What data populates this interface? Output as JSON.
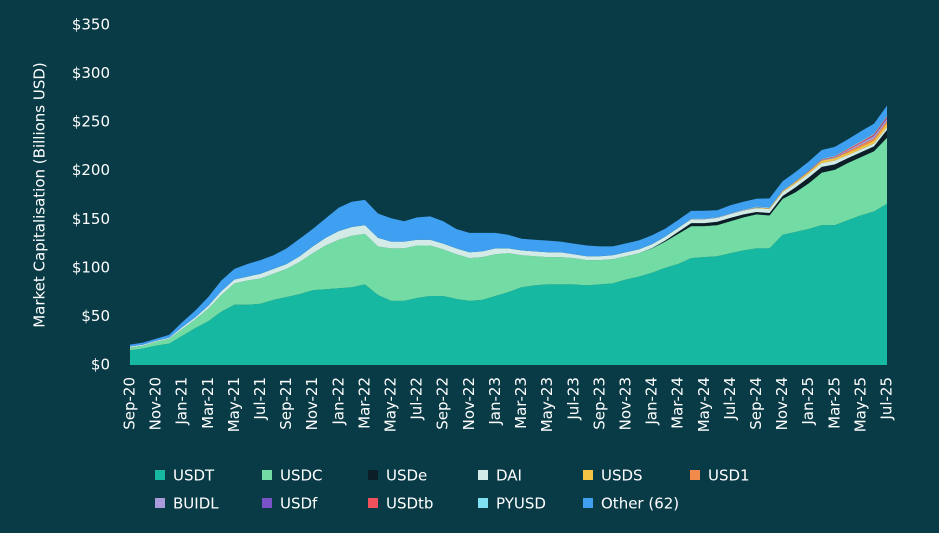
{
  "chart_data": {
    "type": "stacked-area",
    "y_axis_label": "Market Capitalisation (Billions USD)",
    "categories": [
      "Sep-20",
      null,
      "Nov-20",
      null,
      "Jan-21",
      null,
      "Mar-21",
      null,
      "May-21",
      null,
      "Jul-21",
      null,
      "Sep-21",
      null,
      "Nov-21",
      null,
      "Jan-22",
      null,
      "Mar-22",
      null,
      "May-22",
      null,
      "Jul-22",
      null,
      "Sep-22",
      null,
      "Nov-22",
      null,
      "Jan-23",
      null,
      "Mar-23",
      null,
      "May-23",
      null,
      "Jul-23",
      null,
      "Sep-23",
      null,
      "Nov-23",
      null,
      "Jan-24",
      null,
      "Mar-24",
      null,
      "May-24",
      null,
      "Jul-24",
      null,
      "Sep-24",
      null,
      "Nov-24",
      null,
      "Jan-25",
      null,
      "Mar-25",
      null,
      "May-25",
      null,
      "Jul-25"
    ],
    "ylim": [
      0,
      350
    ],
    "yticks": [
      {
        "value": 0,
        "label": "$0"
      },
      {
        "value": 50,
        "label": "$50"
      },
      {
        "value": 100,
        "label": "$100"
      },
      {
        "value": 150,
        "label": "$150"
      },
      {
        "value": 200,
        "label": "$200"
      },
      {
        "value": 250,
        "label": "$250"
      },
      {
        "value": 300,
        "label": "$300"
      },
      {
        "value": 350,
        "label": "$350"
      }
    ],
    "grid": false,
    "series": [
      {
        "name": "USDT",
        "color": "#16b8a2",
        "values": [
          15,
          17,
          20,
          22,
          30,
          38,
          45,
          55,
          62,
          62,
          63,
          67,
          70,
          73,
          77,
          78,
          79,
          80,
          83,
          72,
          66,
          66,
          69,
          71,
          71,
          68,
          66,
          67,
          71,
          75,
          80,
          82,
          83,
          83,
          83,
          82,
          83,
          84,
          88,
          91,
          95,
          100,
          104,
          110,
          111,
          112,
          115,
          118,
          120,
          120,
          134,
          137,
          140,
          144,
          144,
          149,
          154,
          158,
          166
        ]
      },
      {
        "name": "USDC",
        "color": "#72dca4",
        "values": [
          3,
          3,
          4,
          5,
          7,
          9,
          13,
          17,
          22,
          25,
          26,
          27,
          29,
          33,
          38,
          45,
          50,
          53,
          52,
          50,
          54,
          54,
          54,
          52,
          48,
          46,
          44,
          44,
          43,
          40,
          33,
          30,
          28,
          28,
          27,
          26,
          25,
          25,
          24,
          24,
          25,
          27,
          31,
          33,
          32,
          32,
          33,
          34,
          35,
          34,
          37,
          41,
          47,
          54,
          57,
          59,
          60,
          62,
          68
        ]
      },
      {
        "name": "USDe",
        "color": "#0c1f28",
        "values": [
          0,
          0,
          0,
          0,
          0,
          0,
          0,
          0,
          0,
          0,
          0,
          0,
          0,
          0,
          0,
          0,
          0,
          0,
          0,
          0,
          0,
          0,
          0,
          0,
          0,
          0,
          0,
          0,
          0,
          0,
          0,
          0,
          0,
          0,
          0,
          0,
          0,
          0,
          0,
          0,
          0.3,
          1,
          2,
          3,
          3,
          3.5,
          3.5,
          3,
          2.5,
          2.5,
          3,
          5,
          6,
          6,
          5.5,
          5,
          5,
          5,
          8
        ]
      },
      {
        "name": "DAI",
        "color": "#d3ebe6",
        "values": [
          1,
          1,
          1,
          1,
          2,
          2,
          3,
          4,
          4,
          4,
          5,
          5,
          5,
          6,
          7,
          8,
          9,
          9,
          9,
          9,
          7,
          7,
          6,
          6,
          6,
          6,
          6,
          6,
          6,
          5,
          5,
          5,
          5,
          5,
          4,
          4,
          4,
          4,
          4,
          4,
          4,
          4,
          4,
          4,
          4,
          4,
          4,
          4,
          4,
          4,
          4,
          4,
          4,
          4,
          4,
          3,
          3,
          3,
          3
        ]
      },
      {
        "name": "USDS",
        "color": "#f5c343",
        "values": [
          0,
          0,
          0,
          0,
          0,
          0,
          0,
          0,
          0,
          0,
          0,
          0,
          0,
          0,
          0,
          0,
          0,
          0,
          0,
          0,
          0,
          0,
          0,
          0,
          0,
          0,
          0,
          0,
          0,
          0,
          0,
          0,
          0,
          0,
          0,
          0,
          0,
          0,
          0,
          0,
          0,
          0,
          0,
          0,
          0,
          0,
          0,
          0,
          0.5,
          0.8,
          1,
          1.5,
          2,
          2.5,
          2.5,
          2.5,
          2.5,
          3,
          4
        ]
      },
      {
        "name": "USD1",
        "color": "#f28a4c",
        "values": [
          0,
          0,
          0,
          0,
          0,
          0,
          0,
          0,
          0,
          0,
          0,
          0,
          0,
          0,
          0,
          0,
          0,
          0,
          0,
          0,
          0,
          0,
          0,
          0,
          0,
          0,
          0,
          0,
          0,
          0,
          0,
          0,
          0,
          0,
          0,
          0,
          0,
          0,
          0,
          0,
          0,
          0,
          0,
          0,
          0,
          0,
          0,
          0,
          0,
          0,
          0,
          0,
          0,
          0,
          0,
          1.5,
          2,
          2.2,
          2.2
        ]
      },
      {
        "name": "BUIDL",
        "color": "#a99bdb",
        "values": [
          0,
          0,
          0,
          0,
          0,
          0,
          0,
          0,
          0,
          0,
          0,
          0,
          0,
          0,
          0,
          0,
          0,
          0,
          0,
          0,
          0,
          0,
          0,
          0,
          0,
          0,
          0,
          0,
          0,
          0,
          0,
          0,
          0,
          0,
          0,
          0,
          0,
          0,
          0,
          0,
          0,
          0,
          0,
          0.3,
          0.4,
          0.4,
          0.5,
          0.5,
          0.5,
          0.5,
          0.5,
          0.6,
          0.6,
          0.7,
          1,
          1.5,
          2,
          2.5,
          2.5
        ]
      },
      {
        "name": "USDf",
        "color": "#7a52c8",
        "values": [
          0,
          0,
          0,
          0,
          0,
          0,
          0,
          0,
          0,
          0,
          0,
          0,
          0,
          0,
          0,
          0,
          0,
          0,
          0,
          0,
          0,
          0,
          0,
          0,
          0,
          0,
          0,
          0,
          0,
          0,
          0,
          0,
          0,
          0,
          0,
          0,
          0,
          0,
          0,
          0,
          0,
          0,
          0,
          0,
          0,
          0,
          0,
          0,
          0,
          0,
          0,
          0,
          0,
          0,
          0,
          0,
          0,
          0.5,
          1
        ]
      },
      {
        "name": "USDtb",
        "color": "#f1515c",
        "values": [
          0,
          0,
          0,
          0,
          0,
          0,
          0,
          0,
          0,
          0,
          0,
          0,
          0,
          0,
          0,
          0,
          0,
          0,
          0,
          0,
          0,
          0,
          0,
          0,
          0,
          0,
          0,
          0,
          0,
          0,
          0,
          0,
          0,
          0,
          0,
          0,
          0,
          0,
          0,
          0,
          0,
          0,
          0,
          0,
          0,
          0,
          0,
          0,
          0,
          0,
          0,
          0.2,
          0.3,
          0.5,
          0.8,
          1,
          1.2,
          1.3,
          1.4
        ]
      },
      {
        "name": "PYUSD",
        "color": "#80e0f4",
        "values": [
          0,
          0,
          0,
          0,
          0,
          0,
          0,
          0,
          0,
          0,
          0,
          0,
          0,
          0,
          0,
          0,
          0,
          0,
          0,
          0,
          0,
          0,
          0,
          0,
          0,
          0,
          0,
          0,
          0,
          0,
          0,
          0,
          0,
          0,
          0,
          0,
          0.1,
          0.1,
          0.2,
          0.3,
          0.3,
          0.3,
          0.3,
          0.4,
          0.4,
          0.4,
          0.4,
          0.6,
          0.7,
          0.7,
          0.5,
          0.5,
          0.5,
          0.6,
          0.7,
          0.8,
          0.9,
          0.9,
          0.9
        ]
      },
      {
        "name": "Other (62)",
        "color": "#3f9ff0",
        "values": [
          2,
          2,
          2,
          3,
          5,
          7,
          9,
          11,
          11,
          13,
          14,
          14,
          16,
          18,
          18,
          20,
          24,
          26,
          26,
          25,
          24,
          21,
          23,
          24,
          23,
          20,
          20,
          19,
          16,
          14,
          12,
          12,
          12,
          11,
          11,
          11,
          10,
          9,
          9,
          9,
          9,
          8,
          8,
          8,
          8,
          7,
          8,
          8,
          8,
          9,
          9,
          9,
          9,
          9,
          9,
          9,
          10,
          10,
          10
        ]
      }
    ]
  }
}
